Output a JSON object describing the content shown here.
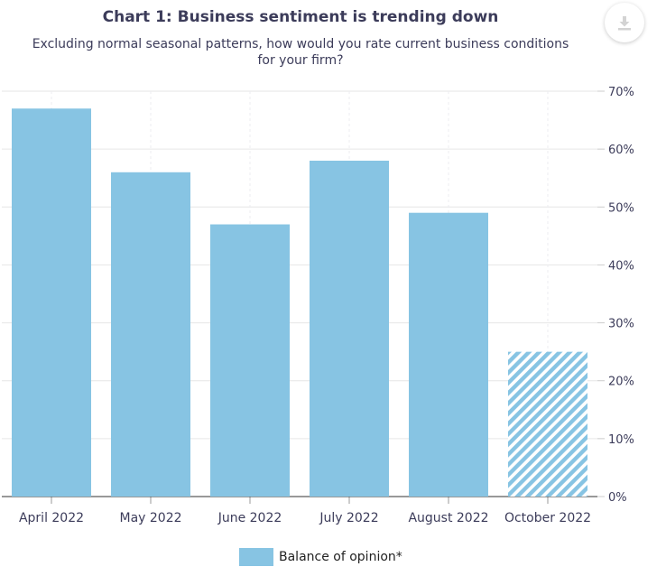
{
  "title": "Chart 1: Business sentiment is trending down",
  "subtitle": "Excluding normal seasonal patterns, how would you rate current business conditions for your firm?",
  "download_button": {
    "icon": "download-icon"
  },
  "colors": {
    "bar": "#87c4e3",
    "grid": "#e6e6e6",
    "axis": "#333333",
    "text": "#3c3c5a"
  },
  "chart_data": {
    "type": "bar",
    "title": "Chart 1: Business sentiment is trending down",
    "subtitle": "Excluding normal seasonal patterns, how would you rate current business conditions for your firm?",
    "categories": [
      "April 2022",
      "May 2022",
      "June 2022",
      "July 2022",
      "August 2022",
      "October 2022"
    ],
    "series": [
      {
        "name": "Balance of opinion*",
        "values": [
          67,
          56,
          47,
          58,
          49,
          25
        ],
        "patterned": [
          false,
          false,
          false,
          false,
          false,
          true
        ]
      }
    ],
    "yticks": [
      "0%",
      "10%",
      "20%",
      "30%",
      "40%",
      "50%",
      "60%",
      "70%"
    ],
    "ylim": [
      0,
      70
    ],
    "y_axis_side": "right",
    "grid": true,
    "legend": "bottom-center"
  }
}
